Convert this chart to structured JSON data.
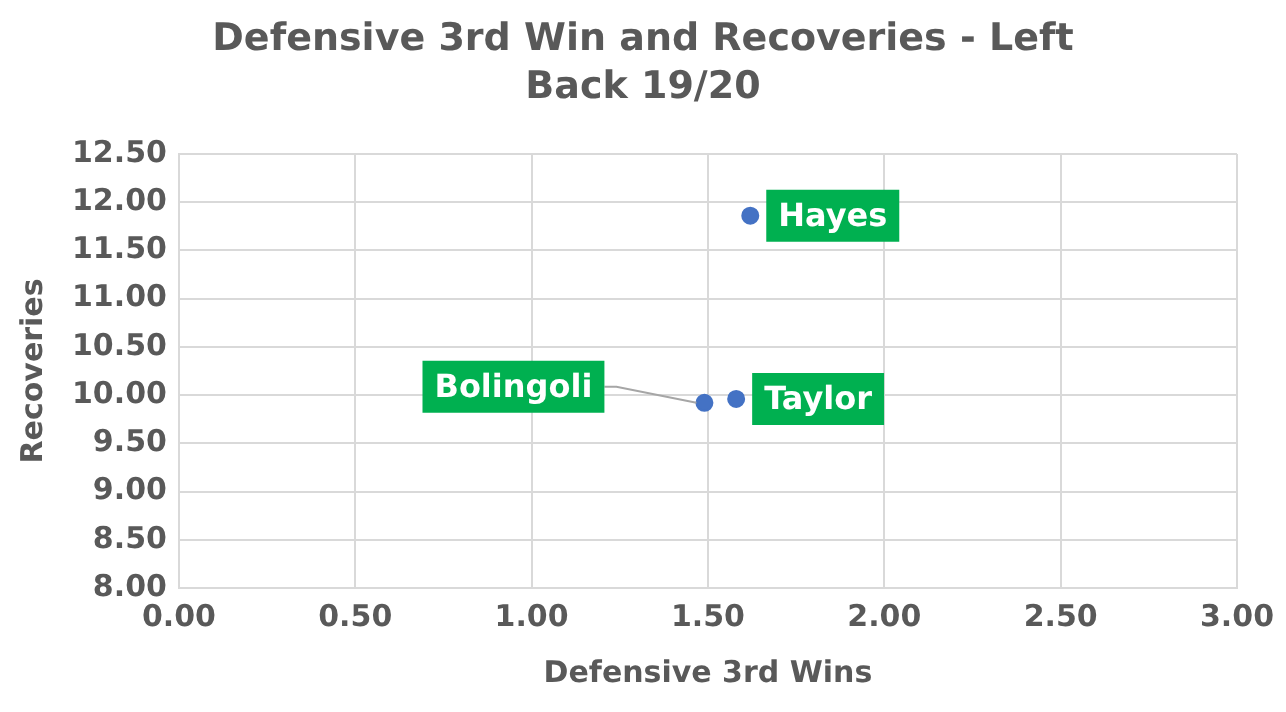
{
  "chart_data": {
    "type": "scatter",
    "title": "Defensive 3rd Win and Recoveries - Left Back 19/20",
    "xlabel": "Defensive 3rd Wins",
    "ylabel": "Recoveries",
    "series": [
      {
        "color": "#4472c4",
        "x": [
          1.62,
          1.58,
          1.49
        ],
        "values": [
          11.86,
          9.96,
          9.92
        ]
      }
    ],
    "annotations": [
      {
        "text": "Hayes",
        "x": 1.62,
        "y": 11.86
      },
      {
        "text": "Taylor",
        "x": 1.58,
        "y": 9.96
      },
      {
        "text": "Bolingoli",
        "x": 1.49,
        "y": 9.92
      }
    ],
    "xlim": [
      0,
      3
    ],
    "xticks": [
      {
        "value": 0,
        "label": "0.00"
      },
      {
        "value": 0.5,
        "label": "0.50"
      },
      {
        "value": 1,
        "label": "1.00"
      },
      {
        "value": 1.5,
        "label": "1.50"
      },
      {
        "value": 2,
        "label": "2.00"
      },
      {
        "value": 2.5,
        "label": "2.50"
      },
      {
        "value": 3,
        "label": "3.00"
      }
    ],
    "ylim": [
      8,
      12.5
    ],
    "yticks": [
      {
        "value": 8,
        "label": "8.00"
      },
      {
        "value": 8.5,
        "label": "8.50"
      },
      {
        "value": 9,
        "label": "9.00"
      },
      {
        "value": 9.5,
        "label": "9.50"
      },
      {
        "value": 10,
        "label": "10.00"
      },
      {
        "value": 10.5,
        "label": "10.50"
      },
      {
        "value": 11,
        "label": "11.00"
      },
      {
        "value": 11.5,
        "label": "11.50"
      },
      {
        "value": 12,
        "label": "12.00"
      },
      {
        "value": 12.5,
        "label": "12.50"
      }
    ],
    "grid": true,
    "legend": false,
    "marker": "circle"
  }
}
